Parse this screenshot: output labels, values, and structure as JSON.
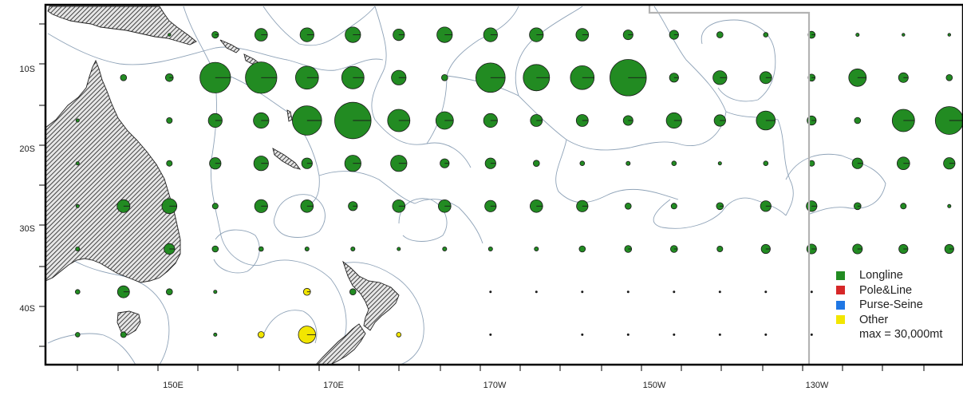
{
  "map": {
    "longitude_ticks": [
      "150E",
      "170E",
      "170W",
      "150W",
      "130W"
    ],
    "latitude_ticks": [
      "10S",
      "20S",
      "30S",
      "40S"
    ],
    "colors": {
      "land": "#bdbdbd",
      "land_outline": "#222222",
      "eez_boundary": "#8fa3b8",
      "frame": "#000000",
      "convention_line": "#b3b3b3"
    }
  },
  "legend": {
    "items": [
      {
        "label": "Longline",
        "color": "#228b22"
      },
      {
        "label": "Pole&Line",
        "color": "#d62728"
      },
      {
        "label": "Purse-Seine",
        "color": "#1f77e4"
      },
      {
        "label": "Other",
        "color": "#f2e600"
      }
    ],
    "max_label": "max = 30,000mt"
  },
  "chart_data": {
    "type": "scatter",
    "grid_spacing_deg": 5,
    "size_encoding": "circle area proportional to catch; largest circle = 30,000 mt",
    "max_value_mt": 30000,
    "longitude_range_deg_east": [
      144,
      244
    ],
    "latitude_range": [
      "4S",
      "46S"
    ],
    "legend_position": "bottom-right",
    "series": [
      {
        "name": "Longline",
        "color": "#228b22",
        "points": [
          {
            "lon": "157.5E",
            "lat": "7.5S",
            "mt": 0
          },
          {
            "lon": "162.5E",
            "lat": "7.5S",
            "mt": 800
          },
          {
            "lon": "167.5E",
            "lat": "7.5S",
            "mt": 2900
          },
          {
            "lon": "172.5E",
            "lat": "7.5S",
            "mt": 3500
          },
          {
            "lon": "177.5E",
            "lat": "7.5S",
            "mt": 4300
          },
          {
            "lon": "177.5W",
            "lat": "7.5S",
            "mt": 2400
          },
          {
            "lon": "172.5W",
            "lat": "7.5S",
            "mt": 4300
          },
          {
            "lon": "167.5W",
            "lat": "7.5S",
            "mt": 3500
          },
          {
            "lon": "162.5W",
            "lat": "7.5S",
            "mt": 3500
          },
          {
            "lon": "157.5W",
            "lat": "7.5S",
            "mt": 2900
          },
          {
            "lon": "152.5W",
            "lat": "7.5S",
            "mt": 1700
          },
          {
            "lon": "147.5W",
            "lat": "7.5S",
            "mt": 1500
          },
          {
            "lon": "142.5W",
            "lat": "7.5S",
            "mt": 700
          },
          {
            "lon": "137.5W",
            "lat": "7.5S",
            "mt": 400
          },
          {
            "lon": "132.5W",
            "lat": "7.5S",
            "mt": 900
          },
          {
            "lon": "127.5W",
            "lat": "7.5S",
            "mt": 200
          },
          {
            "lon": "122.5W",
            "lat": "7.5S",
            "mt": 150
          },
          {
            "lon": "117.5W",
            "lat": "7.5S",
            "mt": 150
          },
          {
            "lon": "152.5E",
            "lat": "12.5S",
            "mt": 700
          },
          {
            "lon": "157.5E",
            "lat": "12.5S",
            "mt": 1100
          },
          {
            "lon": "162.5E",
            "lat": "12.5S",
            "mt": 17000
          },
          {
            "lon": "167.5E",
            "lat": "12.5S",
            "mt": 17900
          },
          {
            "lon": "172.5E",
            "lat": "12.5S",
            "mt": 9600
          },
          {
            "lon": "177.5E",
            "lat": "12.5S",
            "mt": 9000
          },
          {
            "lon": "177.5W",
            "lat": "12.5S",
            "mt": 3900
          },
          {
            "lon": "172.5W",
            "lat": "12.5S",
            "mt": 700
          },
          {
            "lon": "167.5W",
            "lat": "12.5S",
            "mt": 15700
          },
          {
            "lon": "162.5W",
            "lat": "12.5S",
            "mt": 12600
          },
          {
            "lon": "157.5W",
            "lat": "12.5S",
            "mt": 10200
          },
          {
            "lon": "152.5W",
            "lat": "12.5S",
            "mt": 24000
          },
          {
            "lon": "147.5W",
            "lat": "12.5S",
            "mt": 1500
          },
          {
            "lon": "142.5W",
            "lat": "12.5S",
            "mt": 3500
          },
          {
            "lon": "137.5W",
            "lat": "12.5S",
            "mt": 2600
          },
          {
            "lon": "132.5W",
            "lat": "12.5S",
            "mt": 900
          },
          {
            "lon": "127.5W",
            "lat": "12.5S",
            "mt": 5600
          },
          {
            "lon": "122.5W",
            "lat": "12.5S",
            "mt": 1700
          },
          {
            "lon": "117.5W",
            "lat": "12.5S",
            "mt": 700
          },
          {
            "lon": "112.5W",
            "lat": "12.5S",
            "mt": 300
          },
          {
            "lon": "107.5W",
            "lat": "12.5S",
            "mt": 200
          },
          {
            "lon": "147.5E",
            "lat": "17.5S",
            "mt": 200
          },
          {
            "lon": "157.5E",
            "lat": "17.5S",
            "mt": 600
          },
          {
            "lon": "162.5E",
            "lat": "17.5S",
            "mt": 3500
          },
          {
            "lon": "167.5E",
            "lat": "17.5S",
            "mt": 4300
          },
          {
            "lon": "172.5E",
            "lat": "17.5S",
            "mt": 15700
          },
          {
            "lon": "177.5E",
            "lat": "17.5S",
            "mt": 24000
          },
          {
            "lon": "177.5W",
            "lat": "17.5S",
            "mt": 9000
          },
          {
            "lon": "172.5W",
            "lat": "17.5S",
            "mt": 5600
          },
          {
            "lon": "167.5W",
            "lat": "17.5S",
            "mt": 3500
          },
          {
            "lon": "162.5W",
            "lat": "17.5S",
            "mt": 2600
          },
          {
            "lon": "157.5W",
            "lat": "17.5S",
            "mt": 2600
          },
          {
            "lon": "152.5W",
            "lat": "17.5S",
            "mt": 1700
          },
          {
            "lon": "147.5W",
            "lat": "17.5S",
            "mt": 4300
          },
          {
            "lon": "142.5W",
            "lat": "17.5S",
            "mt": 2400
          },
          {
            "lon": "137.5W",
            "lat": "17.5S",
            "mt": 6500
          },
          {
            "lon": "132.5W",
            "lat": "17.5S",
            "mt": 1500
          },
          {
            "lon": "127.5W",
            "lat": "17.5S",
            "mt": 700
          },
          {
            "lon": "122.5W",
            "lat": "17.5S",
            "mt": 9000
          },
          {
            "lon": "117.5W",
            "lat": "17.5S",
            "mt": 14200
          },
          {
            "lon": "112.5W",
            "lat": "17.5S",
            "mt": 12000
          },
          {
            "lon": "107.5W",
            "lat": "17.5S",
            "mt": 5600
          },
          {
            "lon": "102.5W",
            "lat": "17.5S",
            "mt": 5600
          },
          {
            "lon": "147.5E",
            "lat": "22.5S",
            "mt": 200
          },
          {
            "lon": "157.5E",
            "lat": "22.5S",
            "mt": 600
          },
          {
            "lon": "162.5E",
            "lat": "22.5S",
            "mt": 2400
          },
          {
            "lon": "167.5E",
            "lat": "22.5S",
            "mt": 3900
          },
          {
            "lon": "172.5E",
            "lat": "22.5S",
            "mt": 2100
          },
          {
            "lon": "177.5E",
            "lat": "22.5S",
            "mt": 4800
          },
          {
            "lon": "177.5W",
            "lat": "22.5S",
            "mt": 4800
          },
          {
            "lon": "172.5W",
            "lat": "22.5S",
            "mt": 1500
          },
          {
            "lon": "167.5W",
            "lat": "22.5S",
            "mt": 2100
          },
          {
            "lon": "162.5W",
            "lat": "22.5S",
            "mt": 700
          },
          {
            "lon": "157.5W",
            "lat": "22.5S",
            "mt": 400
          },
          {
            "lon": "152.5W",
            "lat": "22.5S",
            "mt": 300
          },
          {
            "lon": "147.5W",
            "lat": "22.5S",
            "mt": 400
          },
          {
            "lon": "142.5W",
            "lat": "22.5S",
            "mt": 200
          },
          {
            "lon": "137.5W",
            "lat": "22.5S",
            "mt": 400
          },
          {
            "lon": "132.5W",
            "lat": "22.5S",
            "mt": 600
          },
          {
            "lon": "127.5W",
            "lat": "22.5S",
            "mt": 2100
          },
          {
            "lon": "122.5W",
            "lat": "22.5S",
            "mt": 2900
          },
          {
            "lon": "117.5W",
            "lat": "22.5S",
            "mt": 2400
          },
          {
            "lon": "112.5W",
            "lat": "22.5S",
            "mt": 900
          },
          {
            "lon": "147.5E",
            "lat": "27.5S",
            "mt": 200
          },
          {
            "lon": "152.5E",
            "lat": "27.5S",
            "mt": 3000
          },
          {
            "lon": "157.5E",
            "lat": "27.5S",
            "mt": 4100
          },
          {
            "lon": "162.5E",
            "lat": "27.5S",
            "mt": 600
          },
          {
            "lon": "167.5E",
            "lat": "27.5S",
            "mt": 3100
          },
          {
            "lon": "172.5E",
            "lat": "27.5S",
            "mt": 2900
          },
          {
            "lon": "177.5E",
            "lat": "27.5S",
            "mt": 1500
          },
          {
            "lon": "177.5W",
            "lat": "27.5S",
            "mt": 2900
          },
          {
            "lon": "172.5W",
            "lat": "27.5S",
            "mt": 2900
          },
          {
            "lon": "167.5W",
            "lat": "27.5S",
            "mt": 2400
          },
          {
            "lon": "162.5W",
            "lat": "27.5S",
            "mt": 2900
          },
          {
            "lon": "157.5W",
            "lat": "27.5S",
            "mt": 2400
          },
          {
            "lon": "152.5W",
            "lat": "27.5S",
            "mt": 700
          },
          {
            "lon": "147.5W",
            "lat": "27.5S",
            "mt": 600
          },
          {
            "lon": "142.5W",
            "lat": "27.5S",
            "mt": 900
          },
          {
            "lon": "137.5W",
            "lat": "27.5S",
            "mt": 2100
          },
          {
            "lon": "132.5W",
            "lat": "27.5S",
            "mt": 2100
          },
          {
            "lon": "127.5W",
            "lat": "27.5S",
            "mt": 900
          },
          {
            "lon": "122.5W",
            "lat": "27.5S",
            "mt": 600
          },
          {
            "lon": "117.5W",
            "lat": "27.5S",
            "mt": 200
          },
          {
            "lon": "112.5W",
            "lat": "27.5S",
            "mt": 150
          },
          {
            "lon": "147.5E",
            "lat": "32.5S",
            "mt": 300
          },
          {
            "lon": "157.5E",
            "lat": "32.5S",
            "mt": 2100
          },
          {
            "lon": "162.5E",
            "lat": "32.5S",
            "mt": 700
          },
          {
            "lon": "167.5E",
            "lat": "32.5S",
            "mt": 400
          },
          {
            "lon": "172.5E",
            "lat": "32.5S",
            "mt": 300
          },
          {
            "lon": "177.5E",
            "lat": "32.5S",
            "mt": 300
          },
          {
            "lon": "177.5W",
            "lat": "32.5S",
            "mt": 200
          },
          {
            "lon": "172.5W",
            "lat": "32.5S",
            "mt": 300
          },
          {
            "lon": "167.5W",
            "lat": "32.5S",
            "mt": 300
          },
          {
            "lon": "162.5W",
            "lat": "32.5S",
            "mt": 300
          },
          {
            "lon": "157.5W",
            "lat": "32.5S",
            "mt": 700
          },
          {
            "lon": "152.5W",
            "lat": "32.5S",
            "mt": 900
          },
          {
            "lon": "147.5W",
            "lat": "32.5S",
            "mt": 900
          },
          {
            "lon": "142.5W",
            "lat": "32.5S",
            "mt": 600
          },
          {
            "lon": "137.5W",
            "lat": "32.5S",
            "mt": 1500
          },
          {
            "lon": "132.5W",
            "lat": "32.5S",
            "mt": 1700
          },
          {
            "lon": "127.5W",
            "lat": "32.5S",
            "mt": 1700
          },
          {
            "lon": "122.5W",
            "lat": "32.5S",
            "mt": 1500
          },
          {
            "lon": "117.5W",
            "lat": "32.5S",
            "mt": 1500
          },
          {
            "lon": "112.5W",
            "lat": "32.5S",
            "mt": 900
          },
          {
            "lon": "107.5W",
            "lat": "32.5S",
            "mt": 900
          },
          {
            "lon": "147.5E",
            "lat": "37.5S",
            "mt": 400
          },
          {
            "lon": "152.5E",
            "lat": "37.5S",
            "mt": 2600
          },
          {
            "lon": "157.5E",
            "lat": "37.5S",
            "mt": 700
          },
          {
            "lon": "162.5E",
            "lat": "37.5S",
            "mt": 200
          },
          {
            "lon": "177.5E",
            "lat": "37.5S",
            "mt": 700
          },
          {
            "lon": "147.5E",
            "lat": "42.5S",
            "mt": 400
          },
          {
            "lon": "152.5E",
            "lat": "42.5S",
            "mt": 600
          },
          {
            "lon": "162.5E",
            "lat": "42.5S",
            "mt": 200
          }
        ]
      },
      {
        "name": "Pole&Line",
        "color": "#d62728",
        "points": []
      },
      {
        "name": "Purse-Seine",
        "color": "#1f77e4",
        "points": []
      },
      {
        "name": "Other",
        "color": "#f2e600",
        "points": [
          {
            "lon": "172.5E",
            "lat": "37.5S",
            "mt": 900
          },
          {
            "lon": "167.5E",
            "lat": "42.5S",
            "mt": 700
          },
          {
            "lon": "172.5E",
            "lat": "42.5S",
            "mt": 5400
          },
          {
            "lon": "177.5W",
            "lat": "42.5S",
            "mt": 400
          }
        ]
      }
    ],
    "trace_points": [
      {
        "lon": "167.5W",
        "lat": "37.5S"
      },
      {
        "lon": "162.5W",
        "lat": "37.5S"
      },
      {
        "lon": "157.5W",
        "lat": "37.5S"
      },
      {
        "lon": "152.5W",
        "lat": "37.5S"
      },
      {
        "lon": "147.5W",
        "lat": "37.5S"
      },
      {
        "lon": "142.5W",
        "lat": "37.5S"
      },
      {
        "lon": "137.5W",
        "lat": "37.5S"
      },
      {
        "lon": "132.5W",
        "lat": "37.5S"
      },
      {
        "lon": "107.5W",
        "lat": "37.5S"
      },
      {
        "lon": "167.5W",
        "lat": "42.5S"
      },
      {
        "lon": "157.5W",
        "lat": "42.5S"
      },
      {
        "lon": "152.5W",
        "lat": "42.5S"
      },
      {
        "lon": "147.5W",
        "lat": "42.5S"
      },
      {
        "lon": "142.5W",
        "lat": "42.5S"
      },
      {
        "lon": "137.5W",
        "lat": "42.5S"
      },
      {
        "lon": "132.5W",
        "lat": "42.5S"
      }
    ]
  }
}
